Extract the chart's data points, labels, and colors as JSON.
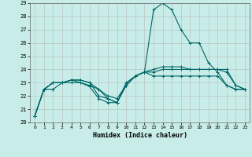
{
  "xlabel": "Humidex (Indice chaleur)",
  "ylabel": "",
  "xlim": [
    -0.5,
    23.5
  ],
  "ylim": [
    20,
    29
  ],
  "yticks": [
    20,
    21,
    22,
    23,
    24,
    25,
    26,
    27,
    28,
    29
  ],
  "xticks": [
    0,
    1,
    2,
    3,
    4,
    5,
    6,
    7,
    8,
    9,
    10,
    11,
    12,
    13,
    14,
    15,
    16,
    17,
    18,
    19,
    20,
    21,
    22,
    23
  ],
  "background_color": "#c8ede8",
  "grid_color": "#b0b0b0",
  "line_color": "#006666",
  "lines": [
    [
      20.5,
      22.5,
      22.5,
      23.0,
      23.0,
      23.0,
      22.7,
      21.8,
      21.5,
      21.5,
      22.8,
      23.5,
      23.8,
      28.5,
      29.0,
      28.5,
      27.0,
      26.0,
      26.0,
      24.5,
      23.8,
      22.8,
      22.5,
      22.5
    ],
    [
      20.5,
      22.5,
      23.0,
      23.0,
      23.2,
      23.2,
      23.0,
      22.0,
      21.8,
      21.5,
      22.8,
      23.5,
      23.8,
      23.5,
      23.5,
      23.5,
      23.5,
      23.5,
      23.5,
      23.5,
      23.5,
      22.8,
      22.5,
      22.5
    ],
    [
      20.5,
      22.5,
      23.0,
      23.0,
      23.2,
      23.2,
      23.0,
      22.5,
      22.0,
      21.8,
      22.8,
      23.5,
      23.8,
      23.8,
      24.0,
      24.0,
      24.0,
      24.0,
      24.0,
      24.0,
      24.0,
      23.8,
      22.8,
      22.5
    ],
    [
      20.5,
      22.5,
      23.0,
      23.0,
      23.2,
      23.0,
      22.8,
      22.5,
      21.8,
      21.5,
      23.0,
      23.5,
      23.8,
      24.0,
      24.2,
      24.2,
      24.2,
      24.0,
      24.0,
      24.0,
      24.0,
      24.0,
      22.8,
      22.5
    ]
  ],
  "marker": "+",
  "markersize": 3,
  "linewidth": 0.8,
  "tick_fontsize": 5.0,
  "xlabel_fontsize": 6.0
}
